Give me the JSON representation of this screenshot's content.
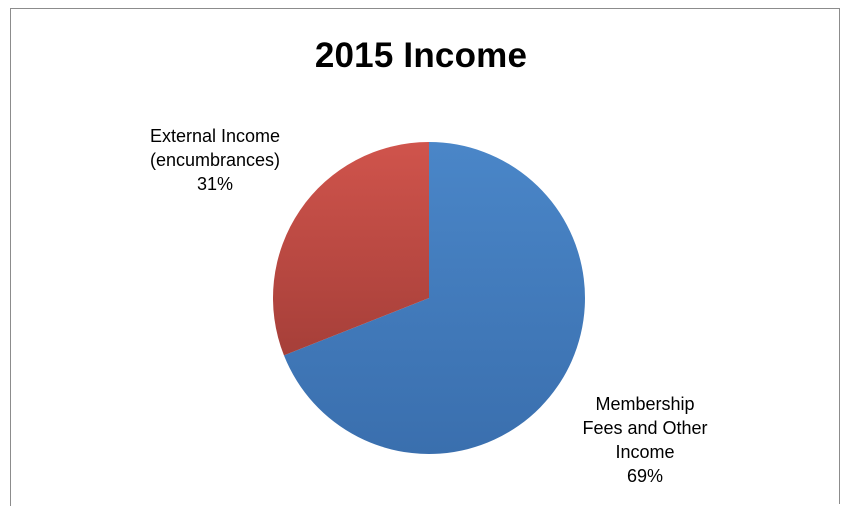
{
  "chart_data": {
    "type": "pie",
    "title": "2015 Income",
    "slices": [
      {
        "label_lines": [
          "Membership",
          "Fees and Other",
          "Income"
        ],
        "value": 69,
        "value_label": "69%",
        "color": "#4a86c8",
        "color_dark": "#3a6fae"
      },
      {
        "label_lines": [
          "External Income",
          "(encumbrances)"
        ],
        "value": 31,
        "value_label": "31%",
        "color": "#d0544c",
        "color_dark": "#a63f39"
      }
    ]
  }
}
